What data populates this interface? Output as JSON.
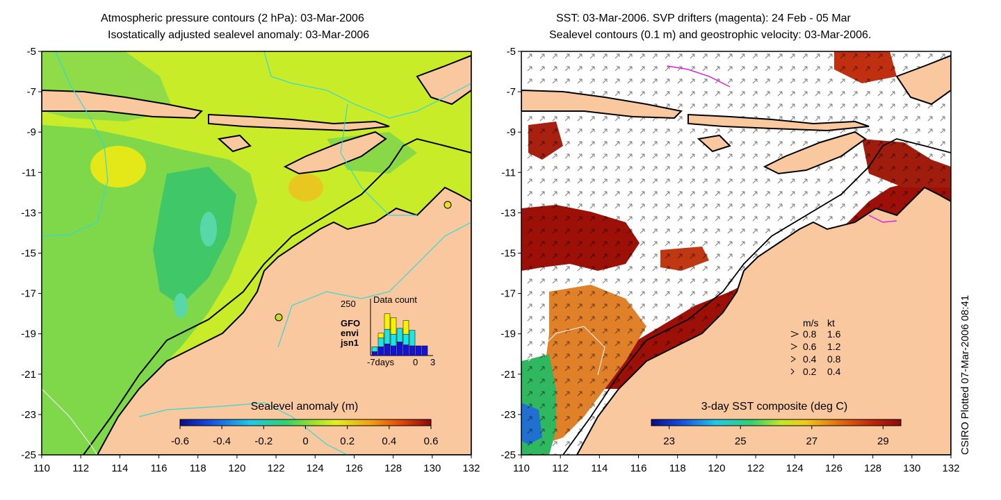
{
  "left_panel": {
    "title_lines": [
      "Atmospheric pressure contours (2 hPa): 03-Mar-2006",
      "Isostatically adjusted sealevel anomaly: 03-Mar-2006"
    ],
    "x_ticks": [
      "110",
      "112",
      "114",
      "116",
      "118",
      "120",
      "122",
      "124",
      "126",
      "128",
      "130",
      "132"
    ],
    "y_ticks": [
      "-5",
      "-7",
      "-9",
      "-11",
      "-13",
      "-15",
      "-17",
      "-19",
      "-21",
      "-23",
      "-25"
    ],
    "colorbar": {
      "label": "Sealevel anomaly (m)",
      "ticks": [
        "-0.6",
        "-0.4",
        "-0.2",
        "0",
        "0.2",
        "0.4",
        "0.6"
      ],
      "range": [
        -0.6,
        0.6
      ]
    },
    "inset": {
      "title": "Data count",
      "ymax_label": "250",
      "x_labels": [
        "-7days",
        "0",
        "3"
      ],
      "missions": [
        {
          "name": "GFO",
          "color": "#f7f300"
        },
        {
          "name": "envi",
          "color": "#19e6e6"
        },
        {
          "name": "jsn1",
          "color": "#1212e0"
        }
      ],
      "bars": [
        {
          "jsn1": 20,
          "envi": 25,
          "GFO": 0
        },
        {
          "jsn1": 45,
          "envi": 45,
          "GFO": 25
        },
        {
          "jsn1": 60,
          "envi": 75,
          "GFO": 80
        },
        {
          "jsn1": 50,
          "envi": 60,
          "GFO": 85
        },
        {
          "jsn1": 70,
          "envi": 70,
          "GFO": 0
        },
        {
          "jsn1": 55,
          "envi": 55,
          "GFO": 70
        },
        {
          "jsn1": 50,
          "envi": 80,
          "GFO": 0
        },
        {
          "jsn1": 50,
          "envi": 0,
          "GFO": 0
        },
        {
          "jsn1": 50,
          "envi": 0,
          "GFO": 0
        }
      ]
    }
  },
  "right_panel": {
    "title_lines": [
      "SST: 03-Mar-2006. SVP drifters (magenta): 24 Feb - 05 Mar",
      "Sealevel contours (0.1 m) and geostrophic velocity: 03-Mar-2006."
    ],
    "x_ticks": [
      "110",
      "112",
      "114",
      "116",
      "118",
      "120",
      "122",
      "124",
      "126",
      "128",
      "130",
      "132"
    ],
    "y_ticks": [
      "-5",
      "-7",
      "-9",
      "-11",
      "-13",
      "-15",
      "-17",
      "-19",
      "-21",
      "-23",
      "-25"
    ],
    "colorbar": {
      "label": "3-day SST composite (deg C)",
      "ticks": [
        "23",
        "25",
        "27",
        "29"
      ],
      "range": [
        22.5,
        29.5
      ]
    },
    "velocity_legend": {
      "headers": [
        "m/s",
        "kt"
      ],
      "rows": [
        [
          "0.8",
          "1.6"
        ],
        [
          "0.6",
          "1.2"
        ],
        [
          "0.4",
          "0.8"
        ],
        [
          "0.2",
          "0.4"
        ]
      ]
    }
  },
  "credit": "CSIRO Plotted 07-Mar-2006 08:41",
  "colors": {
    "land": "#f9c89e",
    "ocean_green": "#7ed84a",
    "ocean_yellow": "#d8f01e",
    "sst_hot": "#9c1008",
    "cyan_contour": "#30d8d8",
    "drifter": "#e020e0"
  }
}
